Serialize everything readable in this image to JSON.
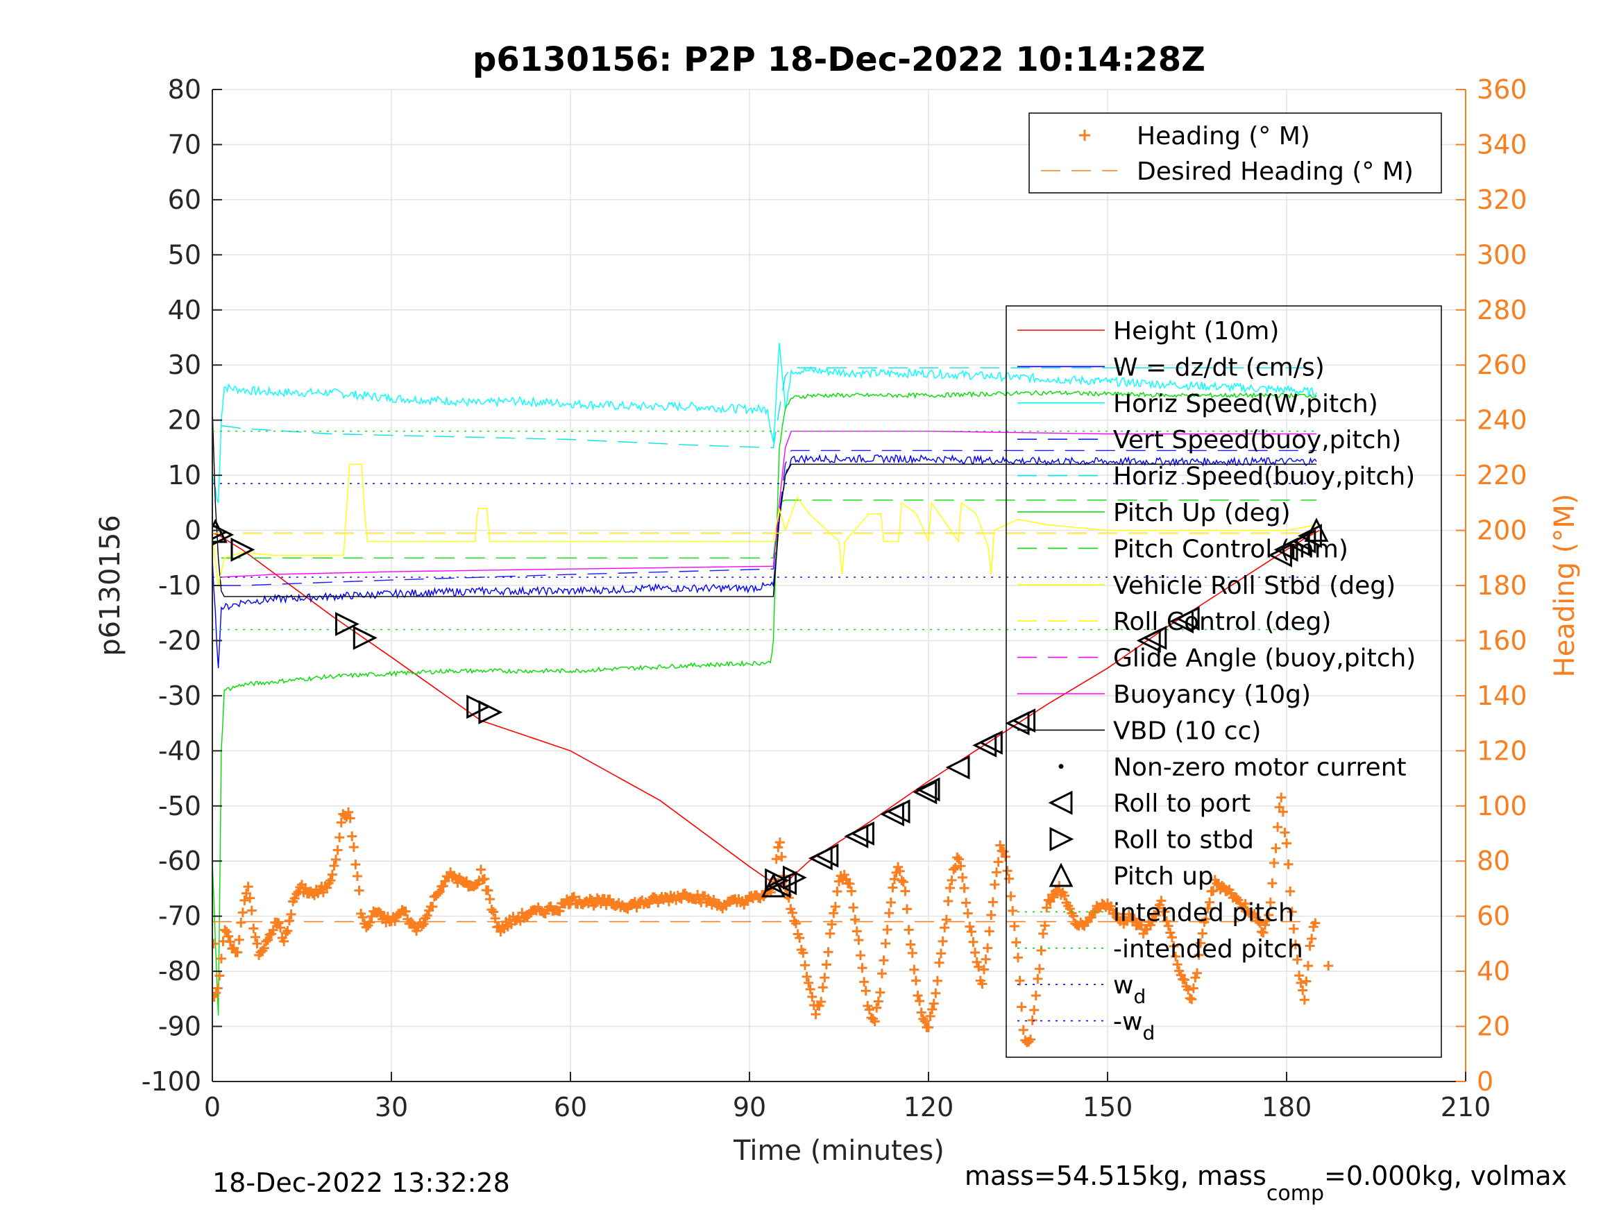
{
  "colors": {
    "axis_left": "#262626",
    "axis_right": "#f97e1f",
    "grid": "#e3e3e3",
    "height": "#ff0000",
    "w": "#0000ff",
    "horiz_speed_w": "#00ffff",
    "vert_speed_buoy": "#1a1aff",
    "horiz_speed_buoy": "#00e5e5",
    "pitch_up": "#00dd00",
    "pitch_control": "#00dd00",
    "roll": "#ffff00",
    "roll_control": "#ffff00",
    "glide_angle": "#ff00ff",
    "buoyancy": "#ff00ff",
    "vbd": "#000000",
    "heading": "#f97e1f",
    "wd": "#0000ff"
  },
  "chart_data": {
    "type": "line",
    "title": "p6130156: P2P 18-Dec-2022 10:14:28Z",
    "xlabel": "Time (minutes)",
    "ylabel": "p6130156",
    "ylabel_right": "Heading (°M)",
    "xlim": [
      0,
      210
    ],
    "ylim": [
      -100,
      80
    ],
    "ylim_right": [
      0,
      360
    ],
    "x_ticks": [
      "0",
      "30",
      "60",
      "90",
      "120",
      "150",
      "180",
      "210"
    ],
    "y_ticks": [
      "80",
      "70",
      "60",
      "50",
      "40",
      "30",
      "20",
      "10",
      "0",
      "-10",
      "-20",
      "-30",
      "-40",
      "-50",
      "-60",
      "-70",
      "-80",
      "-90",
      "-100"
    ],
    "y_ticks_right": [
      "360",
      "340",
      "320",
      "300",
      "280",
      "260",
      "240",
      "220",
      "200",
      "180",
      "160",
      "140",
      "120",
      "100",
      "80",
      "60",
      "40",
      "20",
      "0"
    ],
    "grid": true,
    "footer_left": "18-Dec-2022 13:32:28",
    "footer_right_prefix": "mass=54.515kg, mass",
    "footer_right_sub": "comp",
    "footer_right_suffix": "=0.000kg, volmax",
    "legend_heading": [
      {
        "label": "Heading (° M)",
        "style": "plus"
      },
      {
        "label": "Desired Heading (° M)",
        "style": "dashed"
      }
    ],
    "legend_main": [
      {
        "label": "Height (10m)",
        "style": "solid",
        "color_key": "height"
      },
      {
        "label": "W = dz/dt (cm/s)",
        "style": "solid",
        "color_key": "w"
      },
      {
        "label": "Horiz Speed(W,pitch)",
        "style": "solid",
        "color_key": "horiz_speed_w"
      },
      {
        "label": "Vert Speed(buoy,pitch)",
        "style": "dashed",
        "color_key": "vert_speed_buoy"
      },
      {
        "label": "Horiz Speed(buoy,pitch)",
        "style": "dashed",
        "color_key": "horiz_speed_buoy"
      },
      {
        "label": "Pitch Up (deg)",
        "style": "solid",
        "color_key": "pitch_up"
      },
      {
        "label": "Pitch Control (mm)",
        "style": "dashed",
        "color_key": "pitch_control"
      },
      {
        "label": "Vehicle Roll Stbd (deg)",
        "style": "solid",
        "color_key": "roll"
      },
      {
        "label": "Roll Control (deg)",
        "style": "dashed",
        "color_key": "roll_control"
      },
      {
        "label": "Glide Angle (buoy,pitch)",
        "style": "dashed",
        "color_key": "glide_angle"
      },
      {
        "label": "Buoyancy (10g)",
        "style": "solid",
        "color_key": "buoyancy"
      },
      {
        "label": "VBD (10 cc)",
        "style": "solid",
        "color_key": "vbd"
      },
      {
        "label": "Non-zero motor current",
        "style": "dot",
        "color_key": "vbd"
      },
      {
        "label": "Roll to port",
        "style": "tri-left",
        "color_key": "vbd"
      },
      {
        "label": "Roll to stbd",
        "style": "tri-right",
        "color_key": "vbd"
      },
      {
        "label": "Pitch up",
        "style": "tri-up",
        "color_key": "vbd"
      },
      {
        "label": "intended pitch",
        "style": "dotted",
        "color_key": "pitch_up"
      },
      {
        "label": "-intended pitch",
        "style": "dotted",
        "color_key": "pitch_up"
      },
      {
        "label": "w",
        "sub": "d",
        "style": "dotted",
        "color_key": "wd"
      },
      {
        "label": "-w",
        "sub": "d",
        "style": "dotted",
        "color_key": "wd"
      }
    ],
    "series": [
      {
        "name": "Height (10m)",
        "color_key": "height",
        "dash": "none",
        "width": 1.6,
        "x": [
          0,
          1,
          2,
          5,
          10,
          20,
          30,
          45,
          60,
          75,
          90,
          94,
          95,
          96,
          100,
          110,
          120,
          130,
          140,
          150,
          160,
          170,
          180,
          183,
          185.5
        ],
        "y": [
          -0.5,
          -0.8,
          -1.5,
          -3.5,
          -7.5,
          -15.5,
          -23,
          -34.5,
          -40,
          -49,
          -61,
          -64,
          -64.5,
          -64,
          -60,
          -53,
          -45.5,
          -38.5,
          -31.5,
          -25,
          -17.5,
          -10.5,
          -3.5,
          -1.5,
          0
        ]
      },
      {
        "name": "Horiz Speed(W,pitch)",
        "color_key": "horiz_speed_w",
        "dash": "none",
        "width": 1.4,
        "noise": 0.8,
        "x": [
          0,
          1,
          1.5,
          2,
          5,
          10,
          20,
          30,
          40,
          45,
          50,
          60,
          70,
          80,
          90,
          93,
          94,
          95,
          96,
          97,
          100,
          110,
          120,
          130,
          140,
          150,
          160,
          170,
          180,
          185
        ],
        "y": [
          10,
          5,
          20,
          26,
          25.5,
          25,
          25,
          24,
          23.5,
          23,
          23.5,
          23,
          22.5,
          22.5,
          22,
          22,
          16,
          34,
          22,
          29,
          29,
          28.5,
          28.5,
          28,
          27.5,
          27,
          26.5,
          26,
          25.5,
          25
        ]
      },
      {
        "name": "Horiz Speed(buoy,pitch)",
        "color_key": "horiz_speed_buoy",
        "dash": "28,16",
        "width": 1.4,
        "x": [
          1.5,
          5,
          20,
          40,
          60,
          80,
          94,
          95,
          96,
          97,
          100,
          120,
          140,
          160,
          180,
          185
        ],
        "y": [
          19,
          18.5,
          17.5,
          17,
          16.5,
          15.5,
          15,
          22,
          28,
          29.5,
          29.5,
          29.5,
          29.5,
          29.5,
          29.5,
          29.5
        ]
      },
      {
        "name": "W = dz/dt (cm/s)",
        "color_key": "w",
        "dash": "none",
        "width": 1.4,
        "noise": 0.7,
        "x": [
          0,
          1,
          1.5,
          2,
          5,
          10,
          20,
          30,
          45,
          60,
          75,
          90,
          94,
          95,
          96,
          97,
          100,
          120,
          140,
          160,
          180,
          185
        ],
        "y": [
          -5,
          -25,
          -14,
          -14,
          -13,
          -12.5,
          -12,
          -11.5,
          -11,
          -11,
          -10.5,
          -10.5,
          -10,
          2,
          10,
          13,
          13,
          13,
          12.5,
          12.5,
          12.5,
          12.5
        ]
      },
      {
        "name": "Vert Speed(buoy,pitch)",
        "color_key": "vert_speed_buoy",
        "dash": "28,16",
        "width": 1.4,
        "x": [
          1.5,
          5,
          30,
          60,
          94,
          95,
          96,
          97,
          120,
          150,
          185
        ],
        "y": [
          -10,
          -10,
          -9,
          -8,
          -7,
          3,
          12,
          14.5,
          14.5,
          14.5,
          14.5
        ]
      },
      {
        "name": "Pitch Up (deg)",
        "color_key": "pitch_up",
        "dash": "none",
        "width": 1.4,
        "noise": 0.4,
        "x": [
          0,
          1,
          1.5,
          2,
          5,
          20,
          40,
          60,
          80,
          93.5,
          94,
          95,
          96,
          97,
          100,
          120,
          140,
          160,
          180,
          185
        ],
        "y": [
          -60,
          -88,
          -40,
          -29,
          -28,
          -26.5,
          -25.5,
          -25.5,
          -24.5,
          -24,
          -20,
          15,
          22,
          24,
          24.5,
          24.5,
          25,
          24.5,
          24.5,
          24.5
        ]
      },
      {
        "name": "Pitch Control (mm)",
        "color_key": "pitch_control",
        "dash": "28,16",
        "width": 1.4,
        "x": [
          1.5,
          94,
          95,
          96,
          185
        ],
        "y": [
          -5,
          -5,
          5,
          5.5,
          5.5
        ]
      },
      {
        "name": "Glide Angle (buoy,pitch)",
        "color_key": "glide_angle",
        "dash": "28,16",
        "width": 1.4,
        "x": [
          0,
          185
        ],
        "y": [
          -0.5,
          -0.5
        ]
      },
      {
        "name": "Buoyancy (10g)",
        "color_key": "buoyancy",
        "dash": "none",
        "width": 1.4,
        "x": [
          1.5,
          10,
          30,
          60,
          94,
          95,
          96,
          97,
          120,
          150,
          185
        ],
        "y": [
          -8.5,
          -8,
          -7.5,
          -7,
          -6.5,
          5,
          15,
          18,
          18,
          17.5,
          17.5
        ]
      },
      {
        "name": "VBD (10 cc)",
        "color_key": "vbd",
        "dash": "none",
        "width": 1.4,
        "x": [
          0,
          0.5,
          1,
          1.5,
          2,
          94,
          95,
          96,
          97,
          185
        ],
        "y": [
          22,
          5,
          -5,
          -11,
          -12,
          -12,
          2,
          10,
          12,
          12
        ]
      },
      {
        "name": "Roll Control (deg)",
        "color_key": "roll_control",
        "dash": "28,16",
        "width": 1.4,
        "x": [
          0,
          185
        ],
        "y": [
          -0.5,
          -0.5
        ]
      },
      {
        "name": "Vehicle Roll Stbd (deg)",
        "color_key": "roll",
        "dash": "none",
        "width": 1.4,
        "x": [
          0,
          1,
          2,
          5,
          10,
          22,
          22.5,
          23,
          25,
          25.5,
          26,
          40,
          44,
          44.5,
          46,
          46.5,
          50,
          80,
          94,
          95,
          96,
          98,
          100,
          105,
          105.5,
          106,
          110,
          112,
          112.5,
          115,
          115.5,
          118,
          120,
          120.5,
          125,
          125.5,
          128,
          130,
          130.5,
          131,
          135,
          140,
          150,
          160,
          170,
          180,
          185
        ],
        "y": [
          -1,
          -10,
          -5,
          -4,
          -4.5,
          -4.5,
          4,
          12,
          12,
          3.5,
          -2,
          -2,
          -2,
          4,
          4,
          -2,
          -2,
          -2,
          -2,
          4,
          0,
          6,
          3,
          -2,
          -8,
          -2,
          3,
          3,
          -2,
          -2,
          5,
          3,
          -2,
          5,
          -2,
          5,
          3,
          -3,
          -8,
          0,
          2,
          1,
          0,
          0,
          0,
          0,
          1
        ]
      },
      {
        "name": "intended pitch",
        "color_key": "pitch_up",
        "dash": "3,8",
        "width": 1.4,
        "x": [
          0,
          185
        ],
        "y": [
          18,
          18
        ]
      },
      {
        "name": "-intended pitch",
        "color_key": "pitch_up",
        "dash": "3,8",
        "width": 1.4,
        "x": [
          0,
          185
        ],
        "y": [
          -18,
          -18
        ]
      },
      {
        "name": "w",
        "color_key": "wd",
        "dash": "3,8",
        "width": 1.4,
        "x": [
          0,
          185
        ],
        "y": [
          8.5,
          8.5
        ]
      },
      {
        "name": "-w",
        "color_key": "wd",
        "dash": "3,8",
        "width": 1.4,
        "x": [
          0,
          185
        ],
        "y": [
          -8.5,
          -8.5
        ]
      }
    ],
    "heading_desired": {
      "x": [
        0,
        185
      ],
      "y": [
        58,
        58
      ]
    },
    "heading_points": {
      "x": [
        0,
        1,
        2,
        3,
        4,
        5,
        6,
        7,
        8,
        9,
        10,
        11,
        12,
        13,
        14,
        15,
        17,
        19,
        20,
        21,
        22,
        23,
        24,
        25,
        26,
        27,
        28,
        30,
        32,
        34,
        36,
        38,
        40,
        42,
        44,
        45,
        46,
        47,
        48,
        50,
        52,
        55,
        58,
        60,
        65,
        70,
        75,
        80,
        85,
        90,
        93,
        94,
        95,
        96,
        97,
        98,
        99,
        100,
        101,
        102,
        103,
        104,
        105,
        106,
        107,
        108,
        109,
        110,
        111,
        112,
        113,
        114,
        115,
        116,
        117,
        118,
        119,
        120,
        121,
        122,
        123,
        124,
        125,
        126,
        127,
        128,
        129,
        130,
        131,
        132,
        133,
        134,
        135,
        136,
        137,
        138,
        139,
        140,
        142,
        144,
        146,
        148,
        150,
        152,
        154,
        156,
        158,
        159,
        160,
        161,
        162,
        163,
        164,
        165,
        166,
        167,
        168,
        170,
        172,
        174,
        176,
        177,
        178,
        179,
        180,
        181,
        182,
        183,
        184,
        185
      ],
      "y": [
        30,
        35,
        55,
        50,
        45,
        60,
        72,
        55,
        45,
        50,
        55,
        58,
        50,
        60,
        68,
        70,
        68,
        70,
        75,
        85,
        98,
        96,
        80,
        60,
        55,
        62,
        60,
        58,
        62,
        55,
        60,
        70,
        75,
        72,
        70,
        76,
        70,
        62,
        55,
        58,
        60,
        62,
        63,
        66,
        65,
        64,
        66,
        68,
        64,
        66,
        68,
        70,
        90,
        70,
        62,
        55,
        46,
        35,
        25,
        30,
        45,
        60,
        72,
        76,
        70,
        55,
        40,
        25,
        22,
        35,
        55,
        70,
        78,
        70,
        50,
        35,
        22,
        20,
        30,
        45,
        60,
        75,
        82,
        70,
        55,
        45,
        35,
        50,
        70,
        85,
        80,
        65,
        45,
        15,
        15,
        30,
        50,
        65,
        70,
        60,
        55,
        62,
        65,
        58,
        60,
        55,
        60,
        65,
        58,
        50,
        40,
        35,
        30,
        40,
        55,
        65,
        72,
        70,
        65,
        62,
        55,
        60,
        80,
        105,
        85,
        60,
        40,
        30,
        50,
        60
      ],
      "outlier_x": [
        0.2,
        187
      ],
      "outlier_y": [
        50,
        42
      ]
    },
    "markers": {
      "roll_stbd": {
        "x": [
          0.5,
          1.5,
          5,
          22.5,
          25.5,
          44.5,
          46.5,
          94.5,
          97.5
        ],
        "y": [
          -0.3,
          -0.8,
          -3.5,
          -17,
          -19.5,
          -32,
          -33,
          -63.5,
          -63
        ]
      },
      "roll_port": {
        "x": [
          95,
          96,
          102,
          103,
          108,
          109,
          114,
          115,
          119.5,
          120,
          125,
          129.5,
          130.5,
          135,
          136,
          157,
          158,
          162.5,
          163.5,
          179,
          180,
          182,
          183,
          184
        ],
        "y": [
          -64.5,
          -64,
          -59.5,
          -59,
          -55.5,
          -55,
          -51.5,
          -51,
          -47.5,
          -47,
          -43,
          -39,
          -38.5,
          -35,
          -34.5,
          -20,
          -19.5,
          -16.5,
          -16,
          -4.5,
          -3.5,
          -2.5,
          -2,
          -1
        ]
      },
      "pitch_up": {
        "x": [
          0.5,
          94,
          185
        ],
        "y": [
          -0.2,
          -64.5,
          0
        ]
      }
    }
  }
}
